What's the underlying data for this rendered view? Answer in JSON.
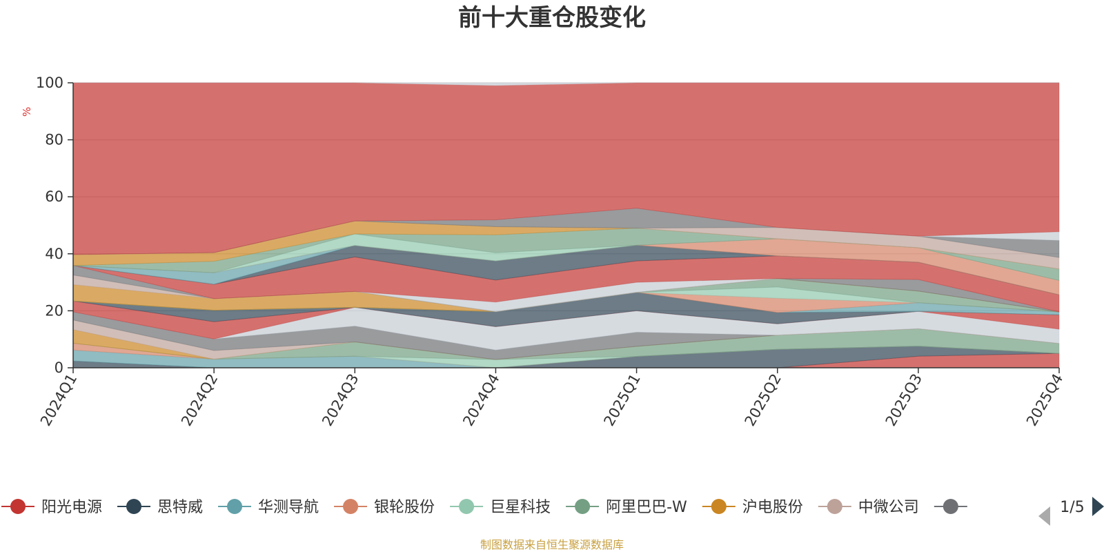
{
  "chart_data": {
    "type": "area",
    "stacked": true,
    "normalized": true,
    "title": "前十大重仓股变化",
    "ylabel": "%",
    "xlabel": "",
    "ylim": [
      0,
      100
    ],
    "yticks": [
      0,
      20,
      40,
      60,
      80,
      100
    ],
    "categories": [
      "2024Q1",
      "2024Q2",
      "2024Q3",
      "2024Q4",
      "2025Q1",
      "2025Q2",
      "2025Q3",
      "2025Q4"
    ],
    "grid": true,
    "legend_position": "bottom",
    "legend": {
      "page": "1/5",
      "items": [
        {
          "name": "阳光电源",
          "color": "#c23531"
        },
        {
          "name": "思特威",
          "color": "#2f4554"
        },
        {
          "name": "华测导航",
          "color": "#61a0a8"
        },
        {
          "name": "银轮股份",
          "color": "#d48265"
        },
        {
          "name": "巨星科技",
          "color": "#91c7ae"
        },
        {
          "name": "阿里巴巴-W",
          "color": "#749f83"
        },
        {
          "name": "沪电股份",
          "color": "#ca8622"
        },
        {
          "name": "中微公司",
          "color": "#bda29a"
        },
        {
          "name": "",
          "color": "#6e7074"
        }
      ]
    },
    "series": [
      {
        "color": "#c23531",
        "values": [
          0,
          0,
          0,
          0,
          0,
          0,
          4,
          5
        ]
      },
      {
        "color": "#2f4554",
        "values": [
          2.5,
          0,
          0,
          0,
          4,
          6.5,
          3.5,
          0
        ]
      },
      {
        "color": "#61a0a8",
        "values": [
          4,
          3,
          4,
          0,
          0,
          0,
          0,
          0
        ]
      },
      {
        "color": "#d48265",
        "values": [
          2.5,
          0,
          0,
          0,
          0,
          0,
          0,
          0
        ]
      },
      {
        "color": "#91c7ae",
        "values": [
          0,
          0,
          0,
          3,
          0,
          0,
          0,
          0
        ]
      },
      {
        "color": "#749f83",
        "values": [
          0,
          0,
          5,
          0,
          3.5,
          5,
          6,
          3.5
        ]
      },
      {
        "color": "#ca8622",
        "values": [
          5,
          0,
          0,
          0,
          0,
          0,
          0,
          0
        ]
      },
      {
        "color": "#bda29a",
        "values": [
          3.5,
          3,
          0,
          0,
          0,
          0,
          0,
          0
        ]
      },
      {
        "color": "#6e7074",
        "values": [
          3,
          4,
          5.5,
          3.5,
          5,
          0,
          0,
          0
        ]
      },
      {
        "color": "#c4ccd3",
        "values": [
          0,
          0,
          6.5,
          8.5,
          7.5,
          4,
          6,
          5
        ]
      },
      {
        "color": "#c23531",
        "values": [
          4,
          6,
          0,
          0,
          0,
          0,
          0,
          5
        ]
      },
      {
        "color": "#2f4554",
        "values": [
          0,
          4,
          0,
          5.5,
          6.5,
          4,
          0,
          0
        ]
      },
      {
        "color": "#61a0a8",
        "values": [
          0,
          0,
          0,
          0,
          0,
          0,
          3,
          1
        ]
      },
      {
        "color": "#d48265",
        "values": [
          0,
          0,
          0,
          0,
          0,
          5,
          0,
          0
        ]
      },
      {
        "color": "#91c7ae",
        "values": [
          0,
          0,
          0,
          0,
          0,
          4,
          0,
          0
        ]
      },
      {
        "color": "#749f83",
        "values": [
          0,
          0,
          0,
          0,
          0,
          3,
          4,
          0
        ]
      },
      {
        "color": "#ca8622",
        "values": [
          6,
          4,
          5.5,
          0,
          0,
          0,
          0,
          0
        ]
      },
      {
        "color": "#bda29a",
        "values": [
          3.5,
          0,
          0,
          0,
          0,
          0,
          0,
          0
        ]
      },
      {
        "color": "#6e7074",
        "values": [
          3.5,
          0,
          0,
          0,
          0,
          0,
          4,
          0
        ]
      },
      {
        "color": "#c4ccd3",
        "values": [
          0,
          0,
          0,
          3.5,
          3.5,
          0,
          0,
          0
        ]
      },
      {
        "color": "#c23531",
        "values": [
          0,
          5,
          12,
          8,
          7.5,
          8,
          6,
          6
        ]
      },
      {
        "color": "#2f4554",
        "values": [
          0,
          0,
          4,
          7,
          5.5,
          0,
          0,
          0
        ]
      },
      {
        "color": "#61a0a8",
        "values": [
          0,
          4,
          0,
          0,
          0,
          0,
          0,
          0
        ]
      },
      {
        "color": "#d48265",
        "values": [
          0,
          0,
          0,
          0,
          0,
          6,
          5,
          5
        ]
      },
      {
        "color": "#91c7ae",
        "values": [
          0,
          0,
          4,
          3,
          0,
          0,
          0,
          0
        ]
      },
      {
        "color": "#749f83",
        "values": [
          0,
          4,
          0,
          6.5,
          6,
          0,
          0,
          4
        ]
      },
      {
        "color": "#ca8622",
        "values": [
          4,
          3,
          4.5,
          3,
          0,
          0,
          0,
          0
        ]
      },
      {
        "color": "#bda29a",
        "values": [
          0,
          0,
          0,
          0,
          0,
          4,
          4,
          4
        ]
      },
      {
        "color": "#6e7074",
        "values": [
          0,
          0,
          0,
          2.5,
          7,
          0,
          0,
          6
        ]
      },
      {
        "color": "#c4ccd3",
        "values": [
          0,
          0,
          0,
          0,
          0,
          0,
          0,
          3
        ]
      },
      {
        "color": "#c23531",
        "values": [
          63,
          59,
          48,
          49,
          44,
          51,
          53,
          52
        ]
      },
      {
        "color": "#c4ccd3",
        "values": [
          0,
          0,
          0,
          1,
          0,
          0,
          0,
          0
        ]
      }
    ]
  },
  "source_note": "制图数据来自恒生聚源数据库"
}
